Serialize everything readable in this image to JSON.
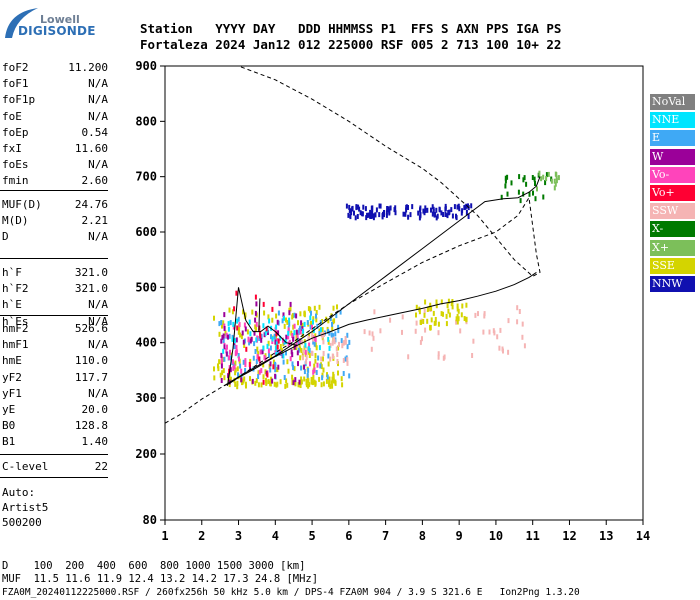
{
  "logo": {
    "top": "Lowell",
    "bottom": "DIGISONDE"
  },
  "header": {
    "row1": "Station   YYYY DAY   DDD HHMMSS P1  FFS S AXN PPS IGA PS",
    "row2": "Fortaleza 2024 Jan12 012 225000 RSF 005 2 713 100 10+ 22"
  },
  "params_a": [
    {
      "label": "foF2",
      "value": "11.200"
    },
    {
      "label": "foF1",
      "value": "N/A"
    },
    {
      "label": "foF1p",
      "value": "N/A"
    },
    {
      "label": "foE",
      "value": "N/A"
    },
    {
      "label": "foEp",
      "value": "0.54"
    },
    {
      "label": "fxI",
      "value": "11.60"
    },
    {
      "label": "foEs",
      "value": "N/A"
    },
    {
      "label": "fmin",
      "value": "2.60"
    }
  ],
  "params_b": [
    {
      "label": "MUF(D)",
      "value": "24.76"
    },
    {
      "label": "M(D)",
      "value": "2.21"
    },
    {
      "label": "D",
      "value": "N/A"
    }
  ],
  "params_c": [
    {
      "label": "h`F",
      "value": "321.0"
    },
    {
      "label": "h`F2",
      "value": "321.0"
    },
    {
      "label": "h`E",
      "value": "N/A"
    },
    {
      "label": "h`Es",
      "value": "N/A"
    }
  ],
  "params_d": [
    {
      "label": "hmF2",
      "value": "526.6"
    },
    {
      "label": "hmF1",
      "value": "N/A"
    },
    {
      "label": "hmE",
      "value": "110.0"
    },
    {
      "label": "yF2",
      "value": "117.7"
    },
    {
      "label": "yF1",
      "value": "N/A"
    },
    {
      "label": "yE",
      "value": "20.0"
    },
    {
      "label": "B0",
      "value": "128.8"
    },
    {
      "label": "B1",
      "value": "1.40"
    }
  ],
  "params_e": [
    {
      "label": "C-level",
      "value": "22"
    }
  ],
  "autoscale": {
    "line1": "Auto:",
    "line2": "Artist5",
    "line3": "500200"
  },
  "legend": [
    {
      "label": "NoVal",
      "color": "#808080"
    },
    {
      "label": "NNE",
      "color": "#00e5ff"
    },
    {
      "label": "E",
      "color": "#3fa9f5"
    },
    {
      "label": "W",
      "color": "#9b0099"
    },
    {
      "label": "Vo-",
      "color": "#ff44bb"
    },
    {
      "label": "Vo+",
      "color": "#ff0033"
    },
    {
      "label": "SSW",
      "color": "#f5b4b4"
    },
    {
      "label": "X-",
      "color": "#007a00"
    },
    {
      "label": "X+",
      "color": "#7cbf5a"
    },
    {
      "label": "SSE",
      "color": "#d4d400"
    },
    {
      "label": "NNW",
      "color": "#1010b0"
    }
  ],
  "footer": {
    "d_line": "D    100  200  400  600  800 1000 1500 3000 [km]",
    "muf_line": "MUF  11.5 11.6 11.9 12.4 13.2 14.2 17.3 24.8 [MHz]",
    "file_line": "FZA0M_20240112225000.RSF / 260fx256h 50 kHz 5.0 km / DPS-4 FZA0M 904 / 3.9 S 321.6 E   Ion2Png 1.3.20"
  },
  "chart_data": {
    "type": "scatter",
    "xlim": [
      1,
      14
    ],
    "ylim": [
      80,
      900
    ],
    "x_ticks": [
      1,
      2,
      3,
      4,
      5,
      6,
      7,
      8,
      9,
      10,
      11,
      12,
      13,
      14
    ],
    "y_ticks": [
      80,
      200,
      300,
      400,
      500,
      600,
      700,
      800,
      900
    ],
    "grid": false,
    "legend_position": "right",
    "trace_virtual": [
      [
        2.6,
        322
      ],
      [
        2.75,
        326
      ],
      [
        3.0,
        337
      ],
      [
        3.5,
        355
      ],
      [
        4,
        375
      ],
      [
        4.5,
        392
      ],
      [
        5,
        408
      ],
      [
        5.5,
        420
      ],
      [
        6,
        433
      ],
      [
        6.5,
        441
      ],
      [
        7,
        448
      ],
      [
        7.5,
        455
      ],
      [
        8,
        462
      ],
      [
        8.5,
        470
      ],
      [
        9,
        476
      ],
      [
        9.5,
        484
      ],
      [
        10,
        493
      ],
      [
        10.5,
        505
      ],
      [
        10.9,
        518
      ],
      [
        11.1,
        527
      ]
    ],
    "trace_virtual_upper": [
      [
        2.7,
        326
      ],
      [
        3.2,
        346
      ],
      [
        4,
        376
      ],
      [
        5,
        420
      ],
      [
        6,
        470
      ],
      [
        7,
        520
      ],
      [
        8,
        570
      ],
      [
        9,
        620
      ],
      [
        9.7,
        655
      ],
      [
        10.2,
        660
      ],
      [
        10.6,
        662
      ],
      [
        10.9,
        672
      ],
      [
        11.1,
        683
      ],
      [
        11.2,
        700
      ]
    ],
    "trace_mode_branch": [
      [
        2.7,
        322
      ],
      [
        2.85,
        390
      ],
      [
        3.0,
        500
      ],
      [
        3.2,
        440
      ],
      [
        3.4,
        420
      ],
      [
        3.6,
        420
      ],
      [
        3.8,
        430
      ],
      [
        4.0,
        420
      ],
      [
        4.3,
        400
      ],
      [
        4.6,
        395
      ]
    ],
    "trace_short": [
      [
        3.55,
        420
      ],
      [
        3.58,
        480
      ]
    ],
    "profile": [
      [
        1.0,
        255
      ],
      [
        1.4,
        270
      ],
      [
        2.0,
        298
      ],
      [
        2.5,
        318
      ],
      [
        3.0,
        338
      ],
      [
        3.5,
        360
      ],
      [
        4,
        382
      ],
      [
        4.5,
        402
      ],
      [
        5,
        425
      ],
      [
        5.5,
        448
      ],
      [
        6,
        470
      ],
      [
        7,
        508
      ],
      [
        8,
        545
      ],
      [
        9,
        575
      ],
      [
        10,
        600
      ],
      [
        10.6,
        630
      ],
      [
        10.9,
        662
      ],
      [
        11.1,
        560
      ],
      [
        11.2,
        527
      ],
      [
        11.0,
        520
      ],
      [
        10.5,
        550
      ],
      [
        10.0,
        590
      ],
      [
        9.5,
        630
      ],
      [
        9.0,
        660
      ],
      [
        8.5,
        690
      ],
      [
        8.0,
        715
      ],
      [
        7.0,
        755
      ],
      [
        6.0,
        800
      ],
      [
        5.0,
        840
      ],
      [
        4.0,
        875
      ],
      [
        3.0,
        900
      ],
      [
        2.3,
        900
      ],
      [
        1.8,
        900
      ]
    ],
    "echo_clusters": [
      {
        "color": "#d4d400",
        "x": [
          2.7,
          5.8
        ],
        "y": [
          325,
          340
        ],
        "n": 80
      },
      {
        "color": "#d4d400",
        "x": [
          2.3,
          5.7
        ],
        "y": [
          340,
          470
        ],
        "n": 160
      },
      {
        "color": "#3fa9f5",
        "x": [
          2.4,
          6.0
        ],
        "y": [
          340,
          460
        ],
        "n": 110
      },
      {
        "color": "#ff44bb",
        "x": [
          2.5,
          5.2
        ],
        "y": [
          350,
          440
        ],
        "n": 70
      },
      {
        "color": "#9b0099",
        "x": [
          2.5,
          4.8
        ],
        "y": [
          330,
          480
        ],
        "n": 60
      },
      {
        "color": "#f5b4b4",
        "x": [
          4.7,
          6.0
        ],
        "y": [
          365,
          420
        ],
        "n": 40
      },
      {
        "color": "#f5b4b4",
        "x": [
          6.4,
          10.8
        ],
        "y": [
          375,
          470
        ],
        "n": 50
      },
      {
        "color": "#00e5ff",
        "x": [
          2.5,
          5.5
        ],
        "y": [
          380,
          450
        ],
        "n": 40
      },
      {
        "color": "#ff0033",
        "x": [
          2.7,
          4.2
        ],
        "y": [
          330,
          500
        ],
        "n": 20
      },
      {
        "color": "#1010b0",
        "x": [
          5.9,
          9.3
        ],
        "y": [
          630,
          652
        ],
        "n": 120
      },
      {
        "color": "#d4d400",
        "x": [
          7.8,
          9.2
        ],
        "y": [
          430,
          480
        ],
        "n": 50
      },
      {
        "color": "#007a00",
        "x": [
          10.0,
          11.6
        ],
        "y": [
          655,
          712
        ],
        "n": 25
      },
      {
        "color": "#7cbf5a",
        "x": [
          11.0,
          11.7
        ],
        "y": [
          680,
          712
        ],
        "n": 15
      }
    ]
  }
}
